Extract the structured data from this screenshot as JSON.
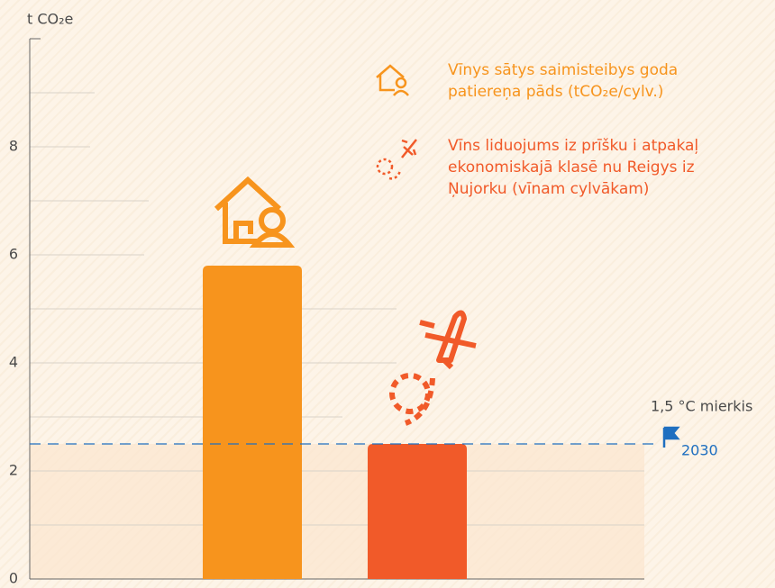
{
  "chart_data": {
    "type": "bar",
    "y_label": "t CO₂e",
    "categories": [
      null,
      null
    ],
    "values": [
      5.8,
      2.5
    ],
    "colors": [
      "#f7941d",
      "#f15a29"
    ],
    "ylim": [
      0,
      10
    ],
    "yticks": [
      0,
      2,
      4,
      6,
      8
    ],
    "yticks_minor": [
      1,
      3,
      5,
      7,
      9
    ],
    "grid": true,
    "series_legend": [
      {
        "name": "Vīnys sātys saimisteibys goda patiereņa pāds (tCO₂e/cylv.)",
        "color": "#f7941d"
      },
      {
        "name": "Vīns liduojums iz prīšku i atpakaļ ekonomiskajā klasē nu Reigys iz Ņujorku (vīnam cylvākam)",
        "color": "#f15a29"
      }
    ],
    "reference_line": {
      "value": 2.5,
      "label": "1,5 °C mierkis",
      "sublabel": "2030",
      "color": "#1f6fc0"
    }
  }
}
